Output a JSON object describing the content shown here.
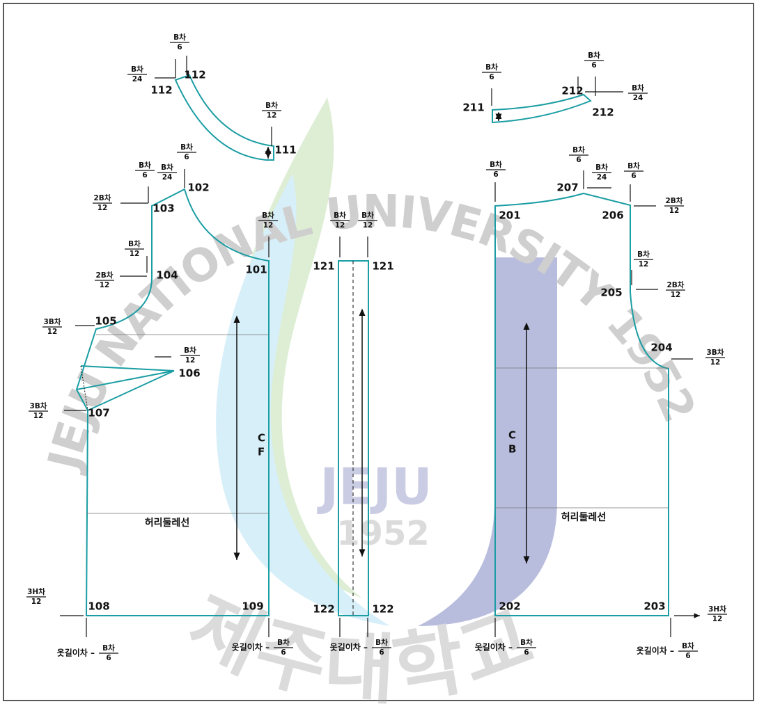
{
  "watermark": {
    "arc": "JEJU NATIONAL UNIVERSITY 1952",
    "center": [
      "JEJU",
      "1952"
    ],
    "bottom": "제주대학교"
  },
  "points": [
    "112",
    "112",
    "111",
    "102",
    "103",
    "104",
    "101",
    "105",
    "106",
    "107",
    "108",
    "109",
    "121",
    "121",
    "122",
    "122",
    "211",
    "212",
    "212",
    "207",
    "201",
    "206",
    "205",
    "204",
    "202",
    "203"
  ],
  "notes": [
    {
      "num": "B차",
      "den": "6"
    },
    {
      "num": "B차",
      "den": "24"
    },
    {
      "num": "B차",
      "den": "12"
    },
    {
      "num": "B차",
      "den": "6"
    },
    {
      "num": "B차",
      "den": "6"
    },
    {
      "num": "B차",
      "den": "24"
    },
    {
      "num": "2B차",
      "den": "12"
    },
    {
      "num": "B차",
      "den": "12"
    },
    {
      "num": "B차",
      "den": "12"
    },
    {
      "num": "2B차",
      "den": "12"
    },
    {
      "num": "3B차",
      "den": "12"
    },
    {
      "num": "B차",
      "den": "12"
    },
    {
      "num": "3B차",
      "den": "12"
    },
    {
      "num": "3H차",
      "den": "12"
    },
    {
      "prefix": "옷길이차 –",
      "num": "B차",
      "den": "6"
    },
    {
      "prefix": "옷길이차 –",
      "num": "B차",
      "den": "6"
    },
    {
      "num": "B차",
      "den": "12"
    },
    {
      "num": "B차",
      "den": "12"
    },
    {
      "prefix": "옷길이차 –",
      "num": "B차",
      "den": "6"
    },
    {
      "num": "B차",
      "den": "6"
    },
    {
      "num": "B차",
      "den": "6"
    },
    {
      "num": "B차",
      "den": "24"
    },
    {
      "num": "B차",
      "den": "6"
    },
    {
      "num": "B차",
      "den": "6"
    },
    {
      "num": "B차",
      "den": "24"
    },
    {
      "num": "B차",
      "den": "6"
    },
    {
      "num": "2B차",
      "den": "12"
    },
    {
      "num": "B차",
      "den": "12"
    },
    {
      "num": "2B차",
      "den": "12"
    },
    {
      "num": "3B차",
      "den": "12"
    },
    {
      "num": "3H차",
      "den": "12"
    },
    {
      "prefix": "옷길이차 –",
      "num": "B차",
      "den": "6"
    },
    {
      "prefix": "옷길이차 –",
      "num": "B차",
      "den": "6"
    }
  ],
  "labels": {
    "cf": [
      "C",
      "F"
    ],
    "cb": [
      "C",
      "B"
    ],
    "waist": [
      "허리둘레선",
      "허리둘레선"
    ]
  }
}
